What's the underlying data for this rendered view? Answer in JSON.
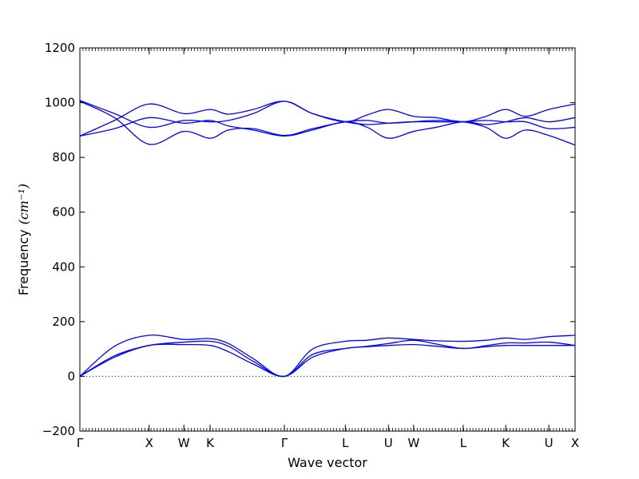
{
  "chart_data": {
    "type": "line",
    "title": "",
    "xlabel": "Wave vector",
    "ylabel": "Frequency",
    "ylabel_unit": "(cm⁻¹)",
    "ylim": [
      -200,
      1200
    ],
    "yticks": [
      -200,
      0,
      200,
      400,
      600,
      800,
      1000,
      1200
    ],
    "xlim": [
      0,
      1
    ],
    "high_symmetry_points": [
      {
        "label": "Γ",
        "x": 0.0
      },
      {
        "label": "X",
        "x": 0.14
      },
      {
        "label": "W",
        "x": 0.21
      },
      {
        "label": "K",
        "x": 0.263
      },
      {
        "label": "Γ",
        "x": 0.413
      },
      {
        "label": "L",
        "x": 0.536
      },
      {
        "label": "U",
        "x": 0.623
      },
      {
        "label": "W",
        "x": 0.674
      },
      {
        "label": "L",
        "x": 0.774
      },
      {
        "label": "K",
        "x": 0.86
      },
      {
        "label": "U",
        "x": 0.947
      },
      {
        "label": "X",
        "x": 1.0
      }
    ],
    "zero_line": true,
    "line_color": "#0000ff",
    "series": [
      {
        "x": [
          0,
          0.07,
          0.14,
          0.21,
          0.263,
          0.3,
          0.35,
          0.413,
          0.47,
          0.536,
          0.58,
          0.623,
          0.674,
          0.72,
          0.774,
          0.82,
          0.86,
          0.9,
          0.947,
          1.0
        ],
        "values": [
          0,
          70,
          113,
          116,
          113,
          90,
          45,
          0,
          70,
          102,
          108,
          113,
          116,
          110,
          102,
          108,
          113,
          113,
          113,
          113
        ]
      },
      {
        "x": [
          0,
          0.07,
          0.14,
          0.21,
          0.263,
          0.3,
          0.35,
          0.413,
          0.47,
          0.536,
          0.58,
          0.623,
          0.674,
          0.72,
          0.774,
          0.82,
          0.86,
          0.9,
          0.947,
          1.0
        ],
        "values": [
          0,
          75,
          113,
          125,
          128,
          110,
          55,
          0,
          80,
          102,
          110,
          120,
          132,
          118,
          102,
          112,
          122,
          122,
          125,
          113
        ]
      },
      {
        "x": [
          0,
          0.07,
          0.14,
          0.21,
          0.263,
          0.3,
          0.35,
          0.413,
          0.47,
          0.536,
          0.58,
          0.623,
          0.674,
          0.72,
          0.774,
          0.82,
          0.86,
          0.9,
          0.947,
          1.0
        ],
        "values": [
          0,
          110,
          150,
          135,
          138,
          120,
          65,
          0,
          100,
          128,
          132,
          140,
          135,
          130,
          128,
          132,
          140,
          135,
          145,
          150
        ]
      },
      {
        "x": [
          0,
          0.07,
          0.14,
          0.21,
          0.263,
          0.3,
          0.35,
          0.413,
          0.47,
          0.536,
          0.58,
          0.623,
          0.674,
          0.72,
          0.774,
          0.82,
          0.86,
          0.9,
          0.947,
          1.0
        ],
        "values": [
          1008,
          960,
          910,
          935,
          930,
          935,
          960,
          1005,
          960,
          930,
          920,
          925,
          930,
          930,
          930,
          935,
          930,
          930,
          905,
          910
        ]
      },
      {
        "x": [
          0,
          0.07,
          0.14,
          0.21,
          0.263,
          0.3,
          0.35,
          0.413,
          0.47,
          0.536,
          0.58,
          0.623,
          0.674,
          0.72,
          0.774,
          0.82,
          0.86,
          0.9,
          0.947,
          1.0
        ],
        "values": [
          1005,
          945,
          848,
          895,
          870,
          900,
          905,
          880,
          905,
          930,
          935,
          925,
          930,
          935,
          930,
          910,
          870,
          900,
          880,
          845
        ]
      },
      {
        "x": [
          0,
          0.07,
          0.14,
          0.21,
          0.263,
          0.3,
          0.35,
          0.413,
          0.47,
          0.536,
          0.58,
          0.623,
          0.674,
          0.72,
          0.774,
          0.82,
          0.86,
          0.9,
          0.947,
          1.0
        ],
        "values": [
          878,
          935,
          995,
          960,
          975,
          958,
          975,
          1005,
          960,
          930,
          955,
          975,
          950,
          945,
          930,
          950,
          975,
          950,
          975,
          995
        ]
      },
      {
        "x": [
          0,
          0.07,
          0.14,
          0.21,
          0.263,
          0.3,
          0.35,
          0.413,
          0.47,
          0.536,
          0.58,
          0.623,
          0.674,
          0.72,
          0.774,
          0.82,
          0.86,
          0.9,
          0.947,
          1.0
        ],
        "values": [
          878,
          905,
          945,
          925,
          935,
          915,
          900,
          878,
          900,
          930,
          910,
          870,
          895,
          910,
          930,
          920,
          930,
          945,
          930,
          945
        ]
      }
    ]
  }
}
